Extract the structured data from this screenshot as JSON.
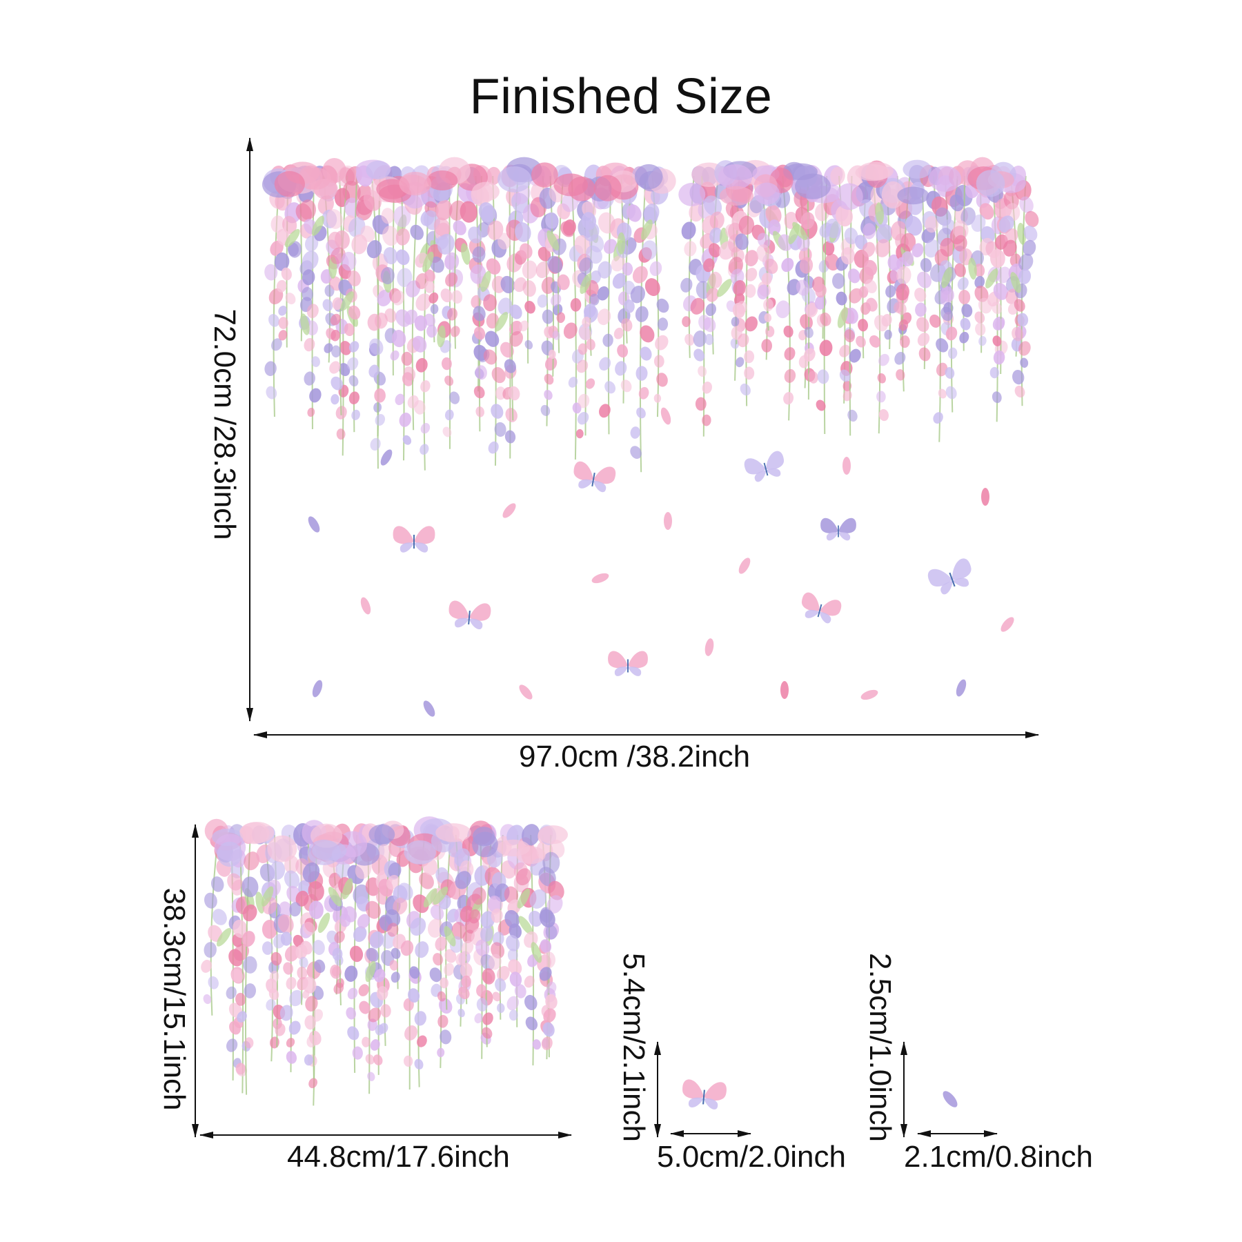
{
  "title": "Finished Size",
  "colors": {
    "pink": "#f3a9c8",
    "deep_pink": "#ec7fa6",
    "lavender": "#a597dc",
    "light_lavender": "#c9bdf0",
    "leaf_green": "#b9d99a",
    "arrow": "#111111",
    "text": "#111111",
    "background": "#ffffff"
  },
  "sets": {
    "main": {
      "height_label": "72.0cm /28.3inch",
      "width_label": "97.0cm /38.2inch",
      "items": [
        "wisteria-cluster-left",
        "wisteria-cluster-right",
        "butterflies",
        "falling-petals"
      ]
    },
    "small_cluster": {
      "height_label": "38.3cm/15.1inch",
      "width_label": "44.8cm/17.6inch"
    },
    "butterfly": {
      "height_label": "5.4cm/2.1inch",
      "width_label": "5.0cm/2.0inch"
    },
    "petal": {
      "height_label": "2.5cm/1.0inch",
      "width_label": "2.1cm/0.8inch"
    }
  }
}
